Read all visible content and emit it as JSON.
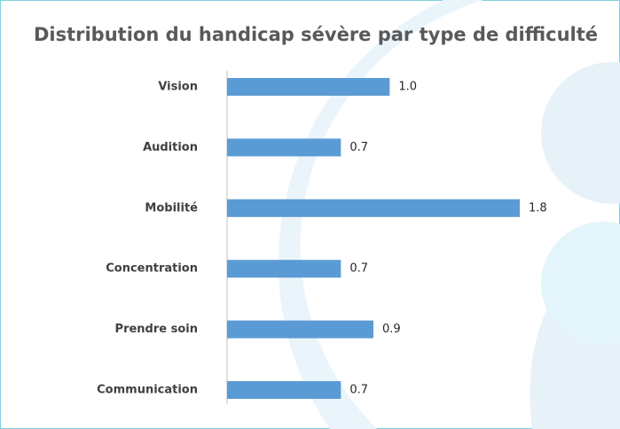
{
  "chart_data": {
    "type": "bar",
    "orientation": "horizontal",
    "title": "Distribution du handicap sévère par type de difficulté",
    "categories": [
      "Vision",
      "Audition",
      "Mobilité",
      "Concentration",
      "Prendre soin",
      "Communication"
    ],
    "values": [
      1.0,
      0.7,
      1.8,
      0.7,
      0.9,
      0.7
    ],
    "value_labels": [
      "1.0",
      "0.7",
      "1.8",
      "0.7",
      "0.9",
      "0.7"
    ],
    "color": "#5b9bd5"
  }
}
